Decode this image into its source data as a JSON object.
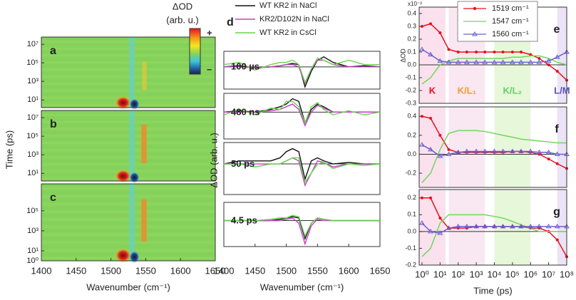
{
  "chart_data": [
    {
      "type": "heatmap",
      "colorbar_title": [
        "ΔOD",
        "(arb. u.)"
      ],
      "colorbar_max_label": "+",
      "colorbar_min_label": "–",
      "ylabel": "Time (ps)",
      "xlabel": "Wavenumber (cm⁻¹)",
      "xlim": [
        1400,
        1650
      ],
      "xticks": [
        1400,
        1450,
        1500,
        1550,
        1600,
        1650
      ],
      "panels": [
        {
          "label": "a",
          "ylim": [
            1.5,
            60000000
          ],
          "yticks": [
            {
              "value": 10,
              "label": "10¹"
            },
            {
              "value": 1000,
              "label": "10³"
            },
            {
              "value": 100000,
              "label": "10⁵"
            },
            {
              "value": 10000000,
              "label": "10⁷"
            }
          ]
        },
        {
          "label": "b",
          "ylim": [
            1.5,
            60000000
          ],
          "yticks": [
            {
              "value": 10,
              "label": "10¹"
            },
            {
              "value": 1000,
              "label": "10³"
            },
            {
              "value": 100000,
              "label": "10⁵"
            },
            {
              "value": 10000000,
              "label": "10⁷"
            }
          ]
        },
        {
          "label": "c",
          "ylim": [
            1,
            50000000
          ],
          "yticks": [
            {
              "value": 1,
              "label": "10⁰"
            },
            {
              "value": 10,
              "label": "10¹"
            },
            {
              "value": 1000,
              "label": "10³"
            },
            {
              "value": 100000,
              "label": "10⁵"
            }
          ]
        }
      ]
    },
    {
      "type": "line",
      "label": "d",
      "xlabel": "Wavenumber (cm⁻¹)",
      "ylabel": "ΔOD (arb. u.)",
      "xlim": [
        1400,
        1650
      ],
      "xticks": [
        1400,
        1450,
        1500,
        1550,
        1600,
        1650
      ],
      "x": [
        1400,
        1425,
        1450,
        1475,
        1490,
        1500,
        1510,
        1520,
        1530,
        1540,
        1550,
        1560,
        1575,
        1600,
        1625,
        1650
      ],
      "series": [
        {
          "name": "WT KR2 in NaCl",
          "color": "#111111"
        },
        {
          "name": "KR2/D102N in NaCl",
          "color": "#c83cc8"
        },
        {
          "name": "WT KR2 in CsCl",
          "color": "#66d44a"
        }
      ],
      "panels": [
        {
          "label": "100 µs",
          "ylim": [
            -1,
            0.7
          ],
          "series": [
            {
              "values": [
                0,
                0.05,
                -0.05,
                0,
                0.05,
                0.1,
                0.15,
                0.1,
                -0.9,
                -0.2,
                0.3,
                0.45,
                0.2,
                0,
                0.05,
                0
              ]
            },
            {
              "values": [
                0,
                0,
                -0.05,
                0,
                0.05,
                0.1,
                0.1,
                0,
                -0.75,
                -0.1,
                0.3,
                0.3,
                0.1,
                0,
                0,
                0
              ]
            },
            {
              "values": [
                0.1,
                0.2,
                -0.15,
                0.1,
                0.2,
                0.2,
                0.3,
                0.1,
                -0.7,
                -0.1,
                0.4,
                0.3,
                0.1,
                0.3,
                0.1,
                0.1
              ]
            }
          ]
        },
        {
          "label": "480 ns",
          "ylim": [
            -1,
            0.7
          ],
          "series": [
            {
              "values": [
                0,
                0.05,
                0,
                0.1,
                0.2,
                0.3,
                0.5,
                0.4,
                -0.4,
                0.1,
                0.3,
                0.2,
                0,
                0,
                0,
                0
              ]
            },
            {
              "values": [
                0,
                0,
                0,
                0.05,
                0.1,
                0.2,
                0.3,
                0.1,
                -0.5,
                0,
                0.25,
                0.15,
                0,
                0,
                0,
                0
              ]
            },
            {
              "values": [
                -0.1,
                0.1,
                -0.1,
                0.15,
                0.1,
                0.4,
                0.4,
                0.2,
                -0.4,
                0.2,
                0.35,
                0.1,
                -0.1,
                0.05,
                -0.1,
                0
              ]
            }
          ]
        },
        {
          "label": "50 ps",
          "ylim": [
            -1,
            0.7
          ],
          "series": [
            {
              "values": [
                0,
                0.1,
                0.1,
                0.1,
                0.2,
                0.4,
                0.5,
                0.4,
                -0.5,
                0.1,
                0.2,
                0.1,
                0,
                0.05,
                0,
                0
              ]
            },
            {
              "values": [
                0,
                0,
                0,
                0,
                0,
                0.1,
                0.2,
                0.1,
                -0.7,
                -0.3,
                0.1,
                0.05,
                -0.1,
                0,
                0,
                0
              ]
            },
            {
              "values": [
                0,
                0,
                -0.1,
                0,
                0,
                0.1,
                0.2,
                0.2,
                -0.6,
                -0.3,
                0,
                0.05,
                -0.15,
                0,
                -0.05,
                0
              ]
            }
          ]
        },
        {
          "label": "4.5 ps",
          "ylim": [
            -1,
            0.7
          ],
          "series": [
            {
              "values": [
                0,
                0,
                0,
                0,
                0.05,
                0.1,
                0.15,
                0.1,
                -0.7,
                -0.1,
                0.1,
                0.05,
                0,
                0,
                0,
                0
              ]
            },
            {
              "values": [
                0,
                0,
                0,
                0,
                0,
                0.05,
                0.1,
                -0.1,
                -0.9,
                -0.2,
                0.05,
                0,
                0,
                0,
                0,
                0
              ]
            },
            {
              "values": [
                0,
                0,
                0,
                0.05,
                0.1,
                0.1,
                0.2,
                0.15,
                -0.6,
                -0.1,
                0.1,
                0.05,
                0,
                0,
                0,
                0
              ]
            }
          ]
        }
      ]
    },
    {
      "type": "scatter",
      "xlabel": "Time (ps)",
      "ylabel": "ΔOD",
      "scale_label": "x10⁻³",
      "xscale": "log",
      "xlim": [
        0.7,
        100000000
      ],
      "xticks": [
        {
          "value": 1,
          "label": "10⁰"
        },
        {
          "value": 10,
          "label": "10¹"
        },
        {
          "value": 100,
          "label": "10²"
        },
        {
          "value": 1000,
          "label": "10³"
        },
        {
          "value": 10000,
          "label": "10⁴"
        },
        {
          "value": 100000,
          "label": "10⁵"
        },
        {
          "value": 1000000,
          "label": "10⁶"
        },
        {
          "value": 10000000,
          "label": "10⁷"
        },
        {
          "value": 100000000,
          "label": "10⁸"
        }
      ],
      "x": [
        1,
        3,
        10,
        30,
        100,
        300,
        1000,
        3000,
        10000,
        30000,
        100000,
        300000,
        1000000,
        3000000,
        10000000,
        30000000,
        100000000
      ],
      "series": [
        {
          "name": "1519 cm⁻¹",
          "color": "#e8101c",
          "marker": "circle"
        },
        {
          "name": "1547 cm⁻¹",
          "color": "#6fd85a",
          "marker": "none"
        },
        {
          "name": "1560 cm⁻¹",
          "color": "#6a5fd0",
          "marker": "triangle"
        }
      ],
      "regions": [
        {
          "label": "K",
          "range": [
            0.7,
            20
          ],
          "color": "#e8101c",
          "fill": "#fbe1ee"
        },
        {
          "label": "K/L₁",
          "range": [
            30,
            3000
          ],
          "color": "#f39a2e",
          "fill": "#f9e7f1"
        },
        {
          "label": "K/L₂",
          "range": [
            10000,
            1000000
          ],
          "color": "#5fd35f",
          "fill": "#e7f7da"
        },
        {
          "label": "L/M",
          "range": [
            30000000,
            100000000
          ],
          "color": "#5a4fc0",
          "fill": "#ece3f6"
        }
      ],
      "panels": [
        {
          "label": "e",
          "ylim": [
            -0.3,
            0.45
          ],
          "yticks": [
            -0.3,
            -0.2,
            -0.1,
            {
              "value": 0,
              "label": "0.0"
            },
            0.1,
            0.2,
            0.3,
            0.4
          ],
          "series": [
            {
              "values": [
                0.3,
                0.32,
                0.25,
                0.12,
                0.1,
                0.1,
                0.1,
                0.1,
                0.1,
                0.1,
                0.1,
                0.1,
                0.08,
                0.05,
                0,
                -0.05,
                -0.12
              ]
            },
            {
              "values": [
                -0.15,
                -0.1,
                0,
                0.03,
                0.05,
                0.05,
                0.05,
                0.05,
                0.05,
                0.05,
                0.06,
                0.06,
                0.07,
                0.07,
                0.05,
                0.02,
                0
              ]
            },
            {
              "values": [
                0.12,
                0.08,
                0.03,
                0.02,
                0.02,
                0.02,
                0.02,
                0.02,
                0.02,
                0.02,
                0.02,
                0.02,
                0.02,
                0.02,
                0.03,
                0.06,
                0.1
              ]
            }
          ]
        },
        {
          "label": "f",
          "ylim": [
            -0.35,
            0.5
          ],
          "yticks": [
            -0.2,
            {
              "value": 0,
              "label": "0.0"
            },
            0.2,
            0.4
          ],
          "series": [
            {
              "values": [
                0.4,
                0.38,
                0.2,
                0.05,
                0.02,
                0.02,
                0.02,
                0.02,
                0.02,
                0.02,
                0.03,
                0.03,
                0.02,
                0,
                -0.05,
                -0.1,
                -0.15
              ]
            },
            {
              "values": [
                -0.3,
                -0.2,
                0.05,
                0.22,
                0.25,
                0.25,
                0.25,
                0.24,
                0.22,
                0.2,
                0.18,
                0.16,
                0.15,
                0.14,
                0.13,
                0.12,
                0.12
              ]
            },
            {
              "values": [
                0.1,
                0.05,
                -0.02,
                0,
                0.02,
                0.03,
                0.03,
                0.03,
                0.03,
                0.03,
                0.03,
                0.03,
                0.03,
                0.02,
                0.02,
                0,
                0
              ]
            }
          ]
        },
        {
          "label": "g",
          "ylim": [
            -0.2,
            0.25
          ],
          "yticks": [
            -0.2,
            -0.1,
            {
              "value": 0,
              "label": "0.0"
            },
            0.1,
            0.2
          ],
          "series": [
            {
              "values": [
                0.2,
                0.2,
                0.08,
                0.02,
                0.02,
                0.02,
                0.03,
                0.03,
                0.03,
                0.03,
                0.03,
                0.03,
                0.02,
                0.02,
                0,
                -0.05,
                -0.15
              ]
            },
            {
              "values": [
                -0.15,
                -0.1,
                0.05,
                0.1,
                0.1,
                0.1,
                0.1,
                0.1,
                0.09,
                0.08,
                0.06,
                0.04,
                0.02,
                0,
                0,
                0,
                0
              ]
            },
            {
              "values": [
                0.05,
                0,
                -0.01,
                0.02,
                0.03,
                0.03,
                0.03,
                0.03,
                0.03,
                0.03,
                0.03,
                0.03,
                0.03,
                0.03,
                0.03,
                0.03,
                0.03
              ]
            }
          ]
        }
      ]
    }
  ]
}
